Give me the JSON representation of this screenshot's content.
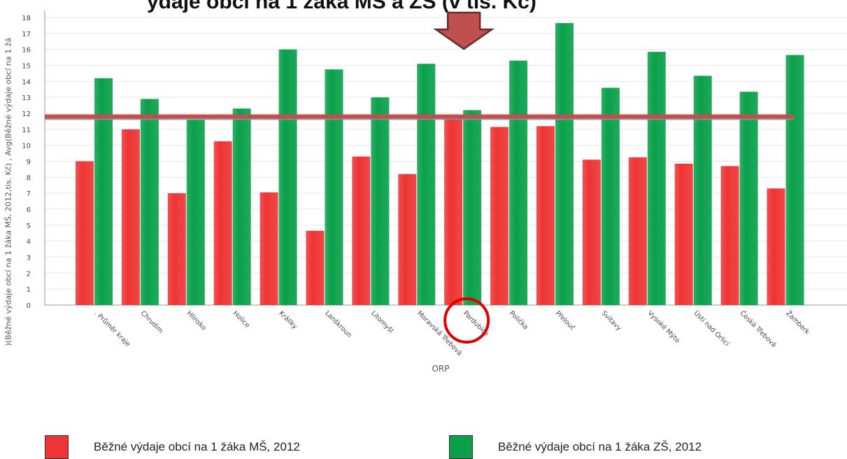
{
  "header": {
    "title_fragment": "ýdaje obcí na 1 žáka MŠ a ZŠ (v tis. Kč)",
    "y_axis_label": ")(Běžné výdaje obcí na 1 žáka MŠ, 2012,tis. Kč) , Avg(Běžné výdaje obcí na 1 žá"
  },
  "colors": {
    "ms": "#ee3434",
    "zs": "#0aa04a",
    "avg_line": "#c0504d",
    "avg_shadow": "#9090a0",
    "arrow": "#c0504d",
    "circle": "#e00000"
  },
  "chart_data": {
    "type": "bar",
    "xlabel": "ORP",
    "ylabel": ")(Běžné výdaje obcí na 1 žáka MŠ, 2012,tis. Kč) , Avg(Běžné výdaje obcí na 1 žá",
    "ylim": [
      0,
      18
    ],
    "yticks": [
      0,
      1,
      2,
      3,
      4,
      5,
      6,
      7,
      8,
      9,
      10,
      11,
      12,
      13,
      14,
      15,
      16,
      17,
      18
    ],
    "grid": true,
    "categories": [
      ". Průměr kraje",
      "Chrudim",
      "Hlinsko",
      "Holice",
      "Králíky",
      "Lanškroun",
      "Litomyšl",
      "Moravská Třebová",
      "Pardubice",
      "Polička",
      "Přelouč",
      "Svitavy",
      "Vysoké Mýto",
      "Ústí nad Orlicí",
      "Česká Třebová",
      "Žamberk"
    ],
    "series": [
      {
        "name": "Běžné výdaje obcí na 1 žáka MŠ, 2012",
        "color": "#ee3434",
        "values": [
          9.0,
          11.0,
          7.0,
          10.25,
          7.05,
          4.65,
          9.3,
          8.2,
          11.8,
          11.15,
          11.2,
          9.1,
          9.25,
          8.85,
          8.7,
          7.3
        ]
      },
      {
        "name": "Běžné výdaje obcí na 1 žáka ZŠ, 2012",
        "color": "#0aa04a",
        "values": [
          14.2,
          12.9,
          11.6,
          12.3,
          16.0,
          14.75,
          13.0,
          15.1,
          12.2,
          15.3,
          17.65,
          13.6,
          15.85,
          14.35,
          13.35,
          15.65
        ]
      }
    ],
    "reference_line": {
      "value": 11.8
    },
    "highlight": {
      "category": "Pardubice",
      "arrow": true,
      "circle": true
    },
    "legend_position": "bottom"
  },
  "legend": [
    {
      "label": "Běžné výdaje obcí na 1 žáka MŠ, 2012",
      "color": "#ee3434"
    },
    {
      "label": "Běžné výdaje obcí na 1 žáka ZŠ, 2012",
      "color": "#0aa04a"
    }
  ]
}
